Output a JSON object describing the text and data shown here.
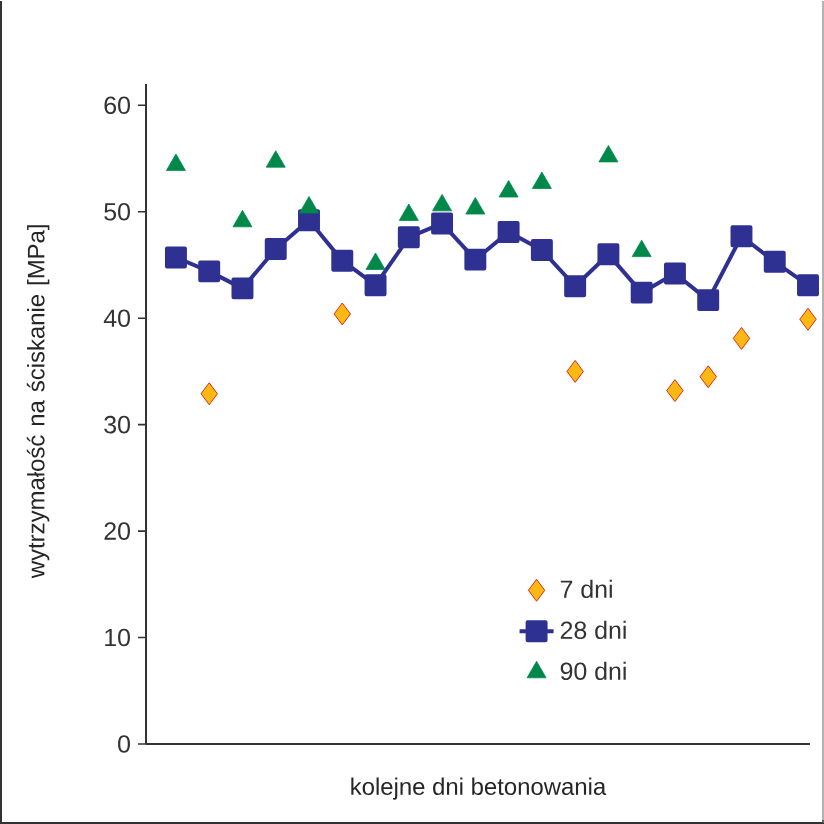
{
  "chart_data": {
    "type": "scatter",
    "xlabel": "kolejne dni betonowania",
    "ylabel": "wytrzymałość na ściskanie [MPa]",
    "categories": [
      null,
      null,
      null,
      null,
      null,
      null,
      null,
      null,
      null,
      null,
      null,
      null,
      null,
      null,
      null,
      null,
      null,
      null,
      null,
      null
    ],
    "ylim": [
      0,
      62
    ],
    "yticks": [
      0,
      10,
      20,
      30,
      40,
      50,
      60
    ],
    "tick_labels": "y",
    "legend": "bottom right",
    "series": [
      {
        "name": "7 dni",
        "marker": "diamond",
        "color": "#fdb913",
        "values": [
          null,
          32.9,
          null,
          null,
          null,
          40.4,
          null,
          null,
          null,
          null,
          null,
          null,
          35.0,
          null,
          null,
          33.2,
          34.5,
          38.1,
          null,
          39.9
        ]
      },
      {
        "name": "28 dni",
        "type": "line",
        "marker": "square",
        "color": "#2e3192",
        "values": [
          45.7,
          44.4,
          42.8,
          46.5,
          49.2,
          45.4,
          43.1,
          47.6,
          48.9,
          45.5,
          48.1,
          46.4,
          43.0,
          46.0,
          42.4,
          44.2,
          41.7,
          47.7,
          45.3,
          43.1
        ]
      },
      {
        "name": "90 dni",
        "marker": "triangle",
        "color": "#00884a",
        "values": [
          54.4,
          null,
          49.1,
          54.7,
          50.4,
          null,
          45.1,
          49.7,
          50.6,
          50.3,
          51.9,
          52.7,
          null,
          55.2,
          46.3,
          null,
          null,
          null,
          null,
          null
        ]
      }
    ]
  }
}
